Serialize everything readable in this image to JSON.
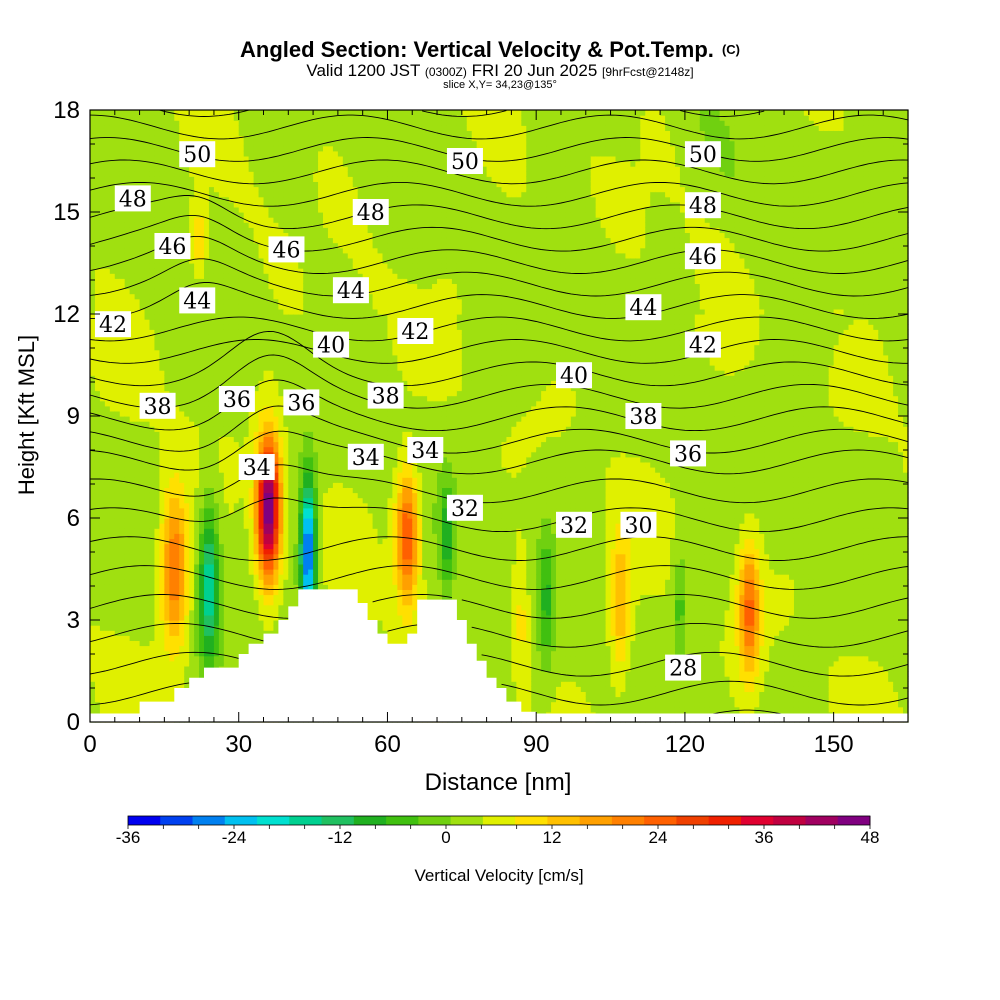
{
  "header": {
    "title": "Angled Section: Vertical Velocity & Pot.Temp.",
    "title_tag": "(C)",
    "valid_prefix": "Valid 1200 JST",
    "valid_utc": "(0300Z)",
    "valid_date": "FRI 20 Jun 2025",
    "forecast": "[9hrFcst@2148z]",
    "slice": "slice X,Y= 34,23@135°"
  },
  "chart_data": {
    "type": "heatmap",
    "xlabel": "Distance [nm]",
    "ylabel": "Height [Kft MSL]",
    "xlim": [
      0,
      165
    ],
    "ylim": [
      0,
      18
    ],
    "x_ticks": [
      0,
      30,
      60,
      90,
      120,
      150
    ],
    "y_ticks": [
      0,
      3,
      6,
      9,
      12,
      15,
      18
    ],
    "colorbar": {
      "label": "Vertical Velocity [cm/s]",
      "min": -36,
      "max": 48,
      "step": 4,
      "tick_values": [
        -36,
        -24,
        -12,
        0,
        12,
        24,
        36,
        48
      ],
      "colors": [
        "#0000f0",
        "#0040f0",
        "#0080f0",
        "#00c0f0",
        "#00e0d0",
        "#00d090",
        "#20c060",
        "#20b020",
        "#40c010",
        "#70d010",
        "#a0e010",
        "#e0f000",
        "#ffe000",
        "#ffc000",
        "#ffa000",
        "#ff8000",
        "#ff6000",
        "#f04000",
        "#f02000",
        "#e00030",
        "#c00040",
        "#a00060",
        "#800080"
      ]
    },
    "theta_contours": {
      "units": "K",
      "interval": 1,
      "labels": [
        {
          "value": 50,
          "x": 18,
          "y": 16.7
        },
        {
          "value": 50,
          "x": 72,
          "y": 16.5
        },
        {
          "value": 50,
          "x": 120,
          "y": 16.7
        },
        {
          "value": 48,
          "x": 5,
          "y": 15.4
        },
        {
          "value": 48,
          "x": 53,
          "y": 15.0
        },
        {
          "value": 48,
          "x": 120,
          "y": 15.2
        },
        {
          "value": 46,
          "x": 13,
          "y": 14.0
        },
        {
          "value": 46,
          "x": 36,
          "y": 13.9
        },
        {
          "value": 46,
          "x": 120,
          "y": 13.7
        },
        {
          "value": 44,
          "x": 18,
          "y": 12.4
        },
        {
          "value": 44,
          "x": 49,
          "y": 12.7
        },
        {
          "value": 44,
          "x": 108,
          "y": 12.2
        },
        {
          "value": 42,
          "x": 1,
          "y": 11.7
        },
        {
          "value": 42,
          "x": 62,
          "y": 11.5
        },
        {
          "value": 42,
          "x": 120,
          "y": 11.1
        },
        {
          "value": 40,
          "x": 45,
          "y": 11.1
        },
        {
          "value": 40,
          "x": 94,
          "y": 10.2
        },
        {
          "value": 38,
          "x": 10,
          "y": 9.3
        },
        {
          "value": 38,
          "x": 56,
          "y": 9.6
        },
        {
          "value": 38,
          "x": 108,
          "y": 9.0
        },
        {
          "value": 36,
          "x": 26,
          "y": 9.5
        },
        {
          "value": 36,
          "x": 39,
          "y": 9.4
        },
        {
          "value": 36,
          "x": 117,
          "y": 7.9
        },
        {
          "value": 34,
          "x": 30,
          "y": 7.5
        },
        {
          "value": 34,
          "x": 52,
          "y": 7.8
        },
        {
          "value": 34,
          "x": 64,
          "y": 8.0
        },
        {
          "value": 32,
          "x": 72,
          "y": 6.3
        },
        {
          "value": 32,
          "x": 94,
          "y": 5.8
        },
        {
          "value": 30,
          "x": 107,
          "y": 5.8
        },
        {
          "value": 28,
          "x": 116,
          "y": 1.6
        }
      ]
    },
    "updrafts": [
      {
        "x": 17,
        "y": 4.5,
        "peak": 20,
        "hx": 2.6,
        "hy": 2.2
      },
      {
        "x": 36,
        "y": 6.3,
        "peak": 46,
        "hx": 2.3,
        "hy": 2.0
      },
      {
        "x": 64,
        "y": 5.5,
        "peak": 24,
        "hx": 2.3,
        "hy": 1.9
      },
      {
        "x": 107,
        "y": 3.5,
        "peak": 12,
        "hx": 2.1,
        "hy": 2.1
      },
      {
        "x": 133,
        "y": 3.3,
        "peak": 20,
        "hx": 2.1,
        "hy": 1.9
      },
      {
        "x": 87,
        "y": 3.0,
        "peak": 6,
        "hx": 1.5,
        "hy": 2.0
      },
      {
        "x": 22,
        "y": 14.2,
        "peak": 8,
        "hx": 1.5,
        "hy": 1.0
      }
    ],
    "downdrafts": [
      {
        "x": 24,
        "y": 4.0,
        "peak": -20,
        "hx": 2.0,
        "hy": 2.4
      },
      {
        "x": 44,
        "y": 5.0,
        "peak": -34,
        "hx": 1.6,
        "hy": 2.2
      },
      {
        "x": 72,
        "y": 5.5,
        "peak": -12,
        "hx": 1.5,
        "hy": 1.6
      },
      {
        "x": 92,
        "y": 3.5,
        "peak": -10,
        "hx": 1.6,
        "hy": 2.0
      },
      {
        "x": 119,
        "y": 3.5,
        "peak": -8,
        "hx": 1.5,
        "hy": 1.6
      }
    ],
    "terrain_kft": [
      [
        0,
        0.0
      ],
      [
        5,
        0.0
      ],
      [
        10,
        0.6
      ],
      [
        15,
        0.6
      ],
      [
        17,
        1.0
      ],
      [
        20,
        1.3
      ],
      [
        23,
        1.6
      ],
      [
        27,
        1.6
      ],
      [
        30,
        2.0
      ],
      [
        32,
        2.3
      ],
      [
        35,
        2.6
      ],
      [
        38,
        3.0
      ],
      [
        40,
        3.4
      ],
      [
        42,
        3.9
      ],
      [
        52,
        3.9
      ],
      [
        54,
        3.5
      ],
      [
        56,
        3.0
      ],
      [
        58,
        2.6
      ],
      [
        60,
        2.3
      ],
      [
        62,
        2.3
      ],
      [
        64,
        2.6
      ],
      [
        66,
        3.6
      ],
      [
        72,
        3.6
      ],
      [
        74,
        3.0
      ],
      [
        76,
        2.3
      ],
      [
        78,
        1.8
      ],
      [
        80,
        1.3
      ],
      [
        82,
        1.0
      ],
      [
        84,
        0.6
      ],
      [
        87,
        0.3
      ],
      [
        90,
        0.0
      ],
      [
        165,
        0.0
      ]
    ]
  }
}
